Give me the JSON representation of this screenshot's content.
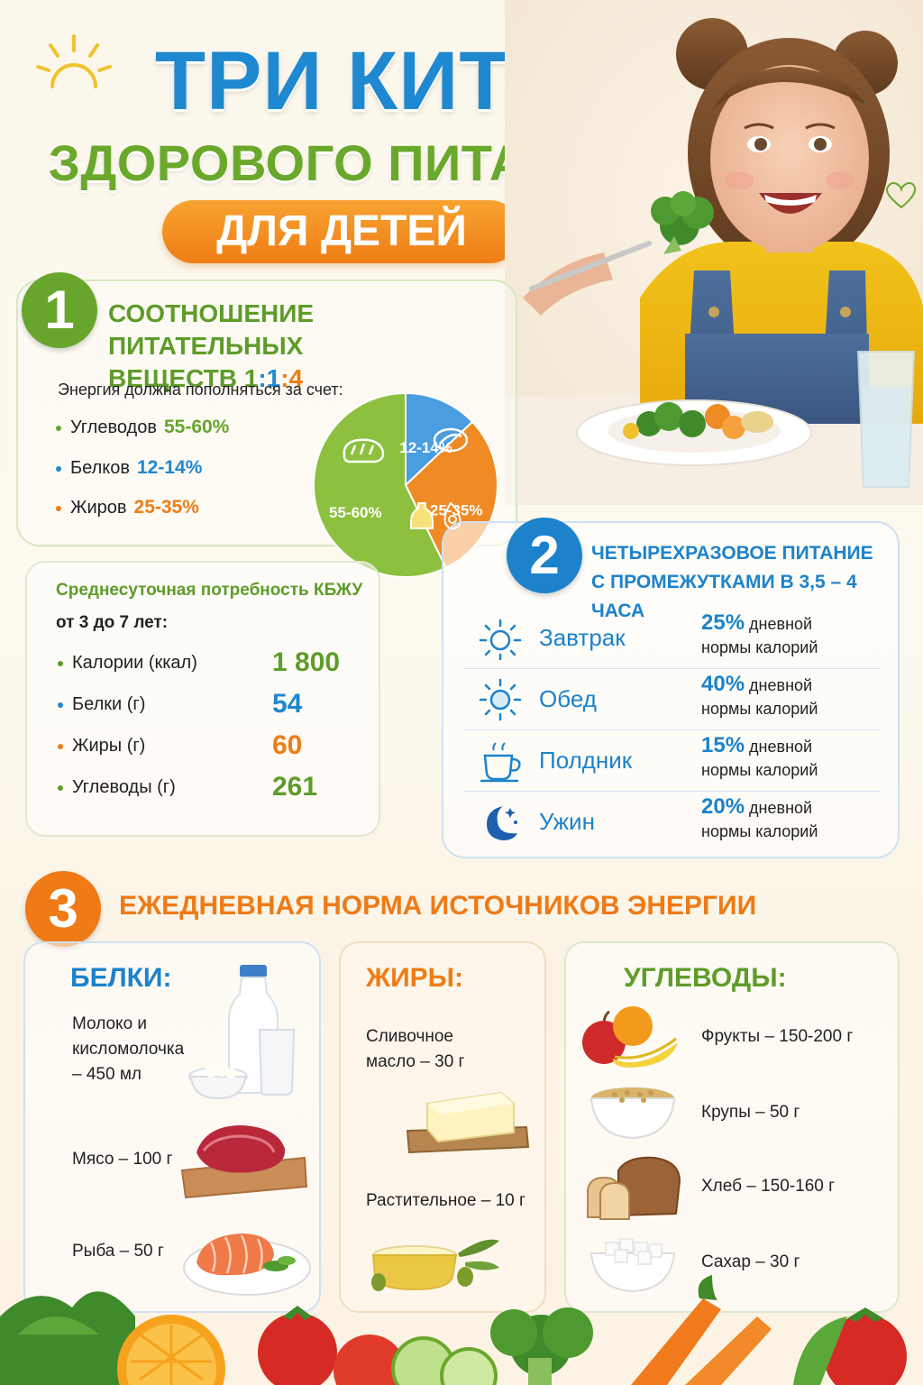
{
  "header": {
    "title_line1": "ТРИ КИТА",
    "title_line2": "ЗДОРОВОГО ПИТАНИЯ",
    "title_line3": "ДЛЯ ДЕТЕЙ"
  },
  "colors": {
    "blue": "#1e88d0",
    "green": "#68a52c",
    "orange": "#ef7d16"
  },
  "section1": {
    "number": "1",
    "title_line1": "СООТНОШЕНИЕ ПИТАТЕЛЬНЫХ",
    "title_line2_prefix": "ВЕЩЕСТВ ",
    "ratio": {
      "p1": "1",
      "c1": ":",
      "p2": "1",
      "c2": ":",
      "p3": "4"
    },
    "intro": "Энергия должна пополняться за счет:",
    "items": [
      {
        "label": "Углеводов",
        "value": "55-60%",
        "color": "#68a52c"
      },
      {
        "label": "Белков",
        "value": "12-14%",
        "color": "#1e88d0"
      },
      {
        "label": "Жиров",
        "value": "25-35%",
        "color": "#ef7d16"
      }
    ],
    "pie_labels": [
      "55-60%",
      "12-14%",
      "25-35%"
    ]
  },
  "chart_data": {
    "type": "pie",
    "categories": [
      "Углеводы",
      "Белки",
      "Жиры"
    ],
    "values": [
      57.5,
      13,
      30
    ],
    "labels": [
      "55-60%",
      "12-14%",
      "25-35%"
    ],
    "colors": [
      "#8cc03e",
      "#4a9ee0",
      "#f08a24"
    ]
  },
  "kbju": {
    "title": "Среднесуточная потребность КБЖУ",
    "age": "от 3 до 7 лет:",
    "rows": [
      {
        "label": "Калории (ккал)",
        "value": "1 800",
        "color": "#5e9c2a"
      },
      {
        "label": "Белки (г)",
        "value": "54",
        "color": "#1e88d0"
      },
      {
        "label": "Жиры (г)",
        "value": "60",
        "color": "#ef7d16"
      },
      {
        "label": "Углеводы (г)",
        "value": "261",
        "color": "#5e9c2a"
      }
    ]
  },
  "section2": {
    "number": "2",
    "title_line1": "ЧЕТЫРЕХРАЗОВОЕ ПИТАНИЕ",
    "title_line2": "С ПРОМЕЖУТКАМИ В 3,5 – 4 ЧАСА",
    "meals": [
      {
        "name": "Завтрак",
        "pct": "25%",
        "text1": " дневной",
        "text2": "нормы калорий",
        "icon": "sunrise-icon"
      },
      {
        "name": "Обед",
        "pct": "40%",
        "text1": " дневной",
        "text2": "нормы калорий",
        "icon": "sun-icon"
      },
      {
        "name": "Полдник",
        "pct": "15%",
        "text1": " дневной",
        "text2": "нормы калорий",
        "icon": "cup-icon"
      },
      {
        "name": "Ужин",
        "pct": "20%",
        "text1": " дневной",
        "text2": "нормы калорий",
        "icon": "moon-icon"
      }
    ]
  },
  "section3": {
    "number": "3",
    "title": "ЕЖЕДНЕВНАЯ НОРМА ИСТОЧНИКОВ ЭНЕРГИИ",
    "protein": {
      "head": "БЕЛКИ:",
      "items": [
        {
          "l1": "Молоко и",
          "l2": "кисломолочка",
          "l3": "– 450 мл"
        },
        {
          "l1": "Мясо – 100 г"
        },
        {
          "l1": "Рыба – 50 г"
        }
      ]
    },
    "fat": {
      "head": "ЖИРЫ:",
      "items": [
        {
          "l1": "Сливочное",
          "l2": "масло – 30 г"
        },
        {
          "l1": "Растительное – 10 г"
        }
      ]
    },
    "carb": {
      "head": "УГЛЕВОДЫ:",
      "items": [
        {
          "l1": "Фрукты – 150-200 г"
        },
        {
          "l1": "Крупы – 50 г"
        },
        {
          "l1": "Хлеб – 150-160 г"
        },
        {
          "l1": "Сахар – 30 г"
        }
      ]
    }
  }
}
